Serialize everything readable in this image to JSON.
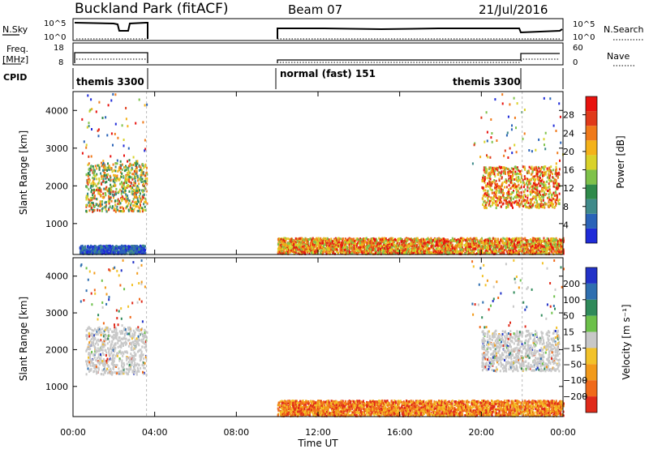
{
  "header": {
    "site": "Buckland Park (fitACF)",
    "beam": "Beam 07",
    "date": "21/Jul/2016"
  },
  "strip": {
    "nsky_label": "N.Sky",
    "nsky_ticks": [
      "10^5",
      "10^0"
    ],
    "nsearch_label": "N.Search",
    "nsearch_ticks": [
      "10^5",
      "10^0"
    ],
    "freq_label_1": "Freq.",
    "freq_label_2": "[MHz]",
    "freq_ticks": [
      "18",
      "8"
    ],
    "nave_label": "Nave",
    "nave_ticks": [
      "60",
      "0"
    ],
    "cpid_label": "CPID",
    "modes": [
      "themis 3300",
      "normal (fast) 151",
      "themis 3300"
    ]
  },
  "chart_data": [
    {
      "type": "heatmap",
      "panel": "power",
      "xlabel": "",
      "ylabel": "Slant Range [km]",
      "x_range_hours": [
        0,
        24
      ],
      "y_range_km": [
        180,
        4500
      ],
      "yticks": [
        1000,
        2000,
        3000,
        4000
      ],
      "colorbar_label": "Power [dB]",
      "colorbar_ticks": [
        4,
        8,
        12,
        16,
        20,
        24,
        28
      ],
      "colorbar_range": [
        0,
        32
      ],
      "colorbar_colors": [
        "#1f2bd8",
        "#2a63b8",
        "#3f8a8a",
        "#2f8a4a",
        "#7fc24a",
        "#d9d22a",
        "#f4b21a",
        "#f07a1a",
        "#e03a1a",
        "#e8120e"
      ],
      "regions": [
        {
          "t": [
            0.6,
            3.6
          ],
          "range_km": [
            1300,
            2600
          ],
          "level": "medium-high"
        },
        {
          "t": [
            20.0,
            23.8
          ],
          "range_km": [
            1400,
            2500
          ],
          "level": "high"
        },
        {
          "t": [
            10.0,
            24.0
          ],
          "range_km": [
            180,
            600
          ],
          "level": "high"
        },
        {
          "t": [
            0.3,
            3.5
          ],
          "range_km": [
            180,
            400
          ],
          "level": "low"
        }
      ]
    },
    {
      "type": "heatmap",
      "panel": "velocity",
      "xlabel": "Time UT",
      "ylabel": "Slant Range [km]",
      "x_range_hours": [
        0,
        24
      ],
      "xticks": [
        "00:00",
        "04:00",
        "08:00",
        "12:00",
        "16:00",
        "20:00",
        "00:00"
      ],
      "y_range_km": [
        180,
        4500
      ],
      "yticks": [
        1000,
        2000,
        3000,
        4000
      ],
      "colorbar_label": "Velocity [m s⁻¹]",
      "colorbar_ticks": [
        "200",
        "100",
        "50",
        "15",
        "−15",
        "−50",
        "−100",
        "−200"
      ],
      "colorbar_colors": [
        "#2232c8",
        "#2f6fb0",
        "#2f8a5a",
        "#6cc04a",
        "#c8c8c8",
        "#f2c22a",
        "#f29a1a",
        "#f06a1a",
        "#e02a1a"
      ],
      "regions": [
        {
          "t": [
            0.6,
            3.6
          ],
          "range_km": [
            1300,
            2600
          ],
          "level": "ground-gray"
        },
        {
          "t": [
            20.0,
            23.8
          ],
          "range_km": [
            1400,
            2500
          ],
          "level": "ground-gray"
        },
        {
          "t": [
            10.0,
            24.0
          ],
          "range_km": [
            180,
            600
          ],
          "level": "negative"
        }
      ]
    }
  ]
}
